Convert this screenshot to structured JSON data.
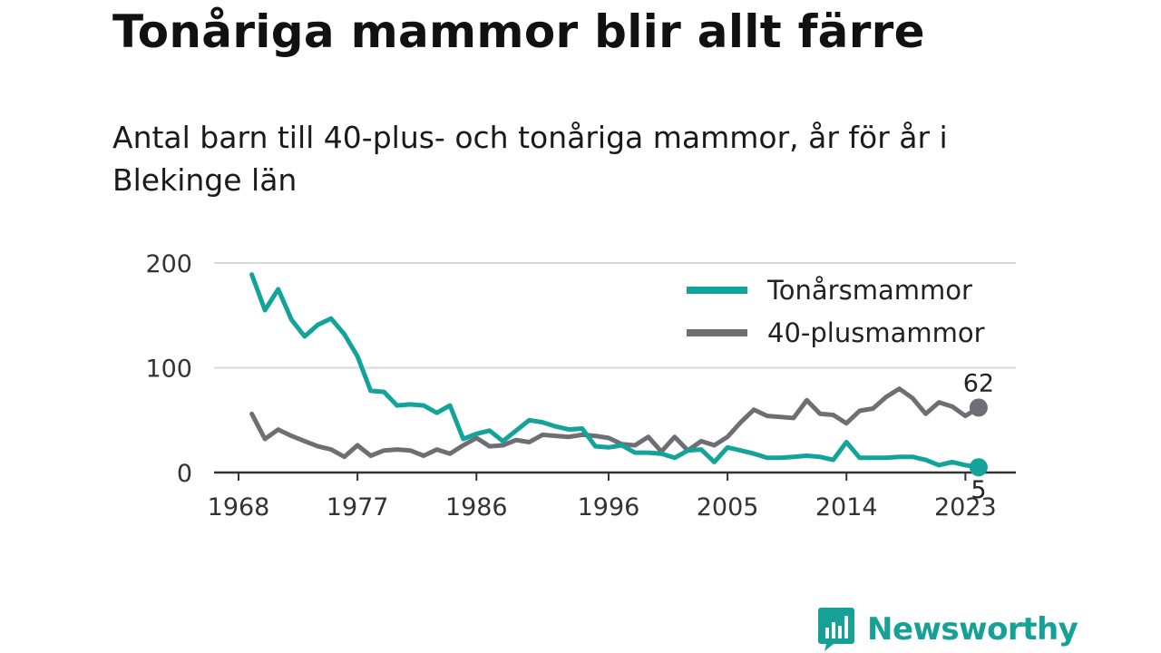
{
  "title": "Tonåriga mammor blir allt färre",
  "subtitle": "Antal barn till 40-plus- och tonåriga mammor, år för år i Blekinge län",
  "branding": {
    "name": "Newsworthy",
    "color": "#17a096",
    "icon": "bar-chart-speech-bubble-icon"
  },
  "chart_data": {
    "type": "line",
    "title": "Tonåriga mammor blir allt färre",
    "ylim": [
      0,
      200
    ],
    "y_ticks": [
      0,
      100,
      200
    ],
    "y_tick_labels": [
      "0",
      "100",
      "200"
    ],
    "x_ticks": [
      1968,
      1977,
      1986,
      1996,
      2005,
      2014,
      2023
    ],
    "x_tick_labels": [
      "1968",
      "1977",
      "1986",
      "1996",
      "2005",
      "2014",
      "2023"
    ],
    "grid": "horizontal",
    "legend_position": "top-right",
    "x": [
      1969,
      1970,
      1971,
      1972,
      1973,
      1974,
      1975,
      1976,
      1977,
      1978,
      1979,
      1980,
      1981,
      1982,
      1983,
      1984,
      1985,
      1986,
      1987,
      1988,
      1989,
      1990,
      1991,
      1992,
      1993,
      1994,
      1995,
      1996,
      1997,
      1998,
      1999,
      2000,
      2001,
      2002,
      2003,
      2004,
      2005,
      2006,
      2007,
      2008,
      2009,
      2010,
      2011,
      2012,
      2013,
      2014,
      2015,
      2016,
      2017,
      2018,
      2019,
      2020,
      2021,
      2022,
      2023,
      2024
    ],
    "series": [
      {
        "name": "Tonårsmammor",
        "color": "#12a39b",
        "values": [
          189,
          155,
          175,
          146,
          130,
          141,
          147,
          132,
          111,
          78,
          77,
          64,
          65,
          64,
          57,
          64,
          32,
          37,
          40,
          30,
          40,
          50,
          48,
          44,
          41,
          42,
          25,
          24,
          26,
          19,
          19,
          18,
          14,
          21,
          22,
          10,
          24,
          21,
          18,
          14,
          14,
          15,
          16,
          15,
          12,
          29,
          14,
          14,
          14,
          15,
          15,
          12,
          7,
          10,
          7,
          5
        ],
        "end_label": "5"
      },
      {
        "name": "40-plusmammor",
        "color": "#6f6e74",
        "values": [
          56,
          32,
          41,
          35,
          30,
          25,
          22,
          15,
          26,
          16,
          21,
          22,
          21,
          16,
          22,
          18,
          26,
          33,
          25,
          26,
          31,
          29,
          36,
          35,
          34,
          36,
          35,
          33,
          27,
          26,
          34,
          20,
          34,
          21,
          30,
          26,
          34,
          48,
          60,
          54,
          53,
          52,
          69,
          56,
          55,
          47,
          59,
          61,
          72,
          80,
          71,
          56,
          67,
          63,
          54,
          62
        ],
        "end_label": "62"
      }
    ]
  }
}
